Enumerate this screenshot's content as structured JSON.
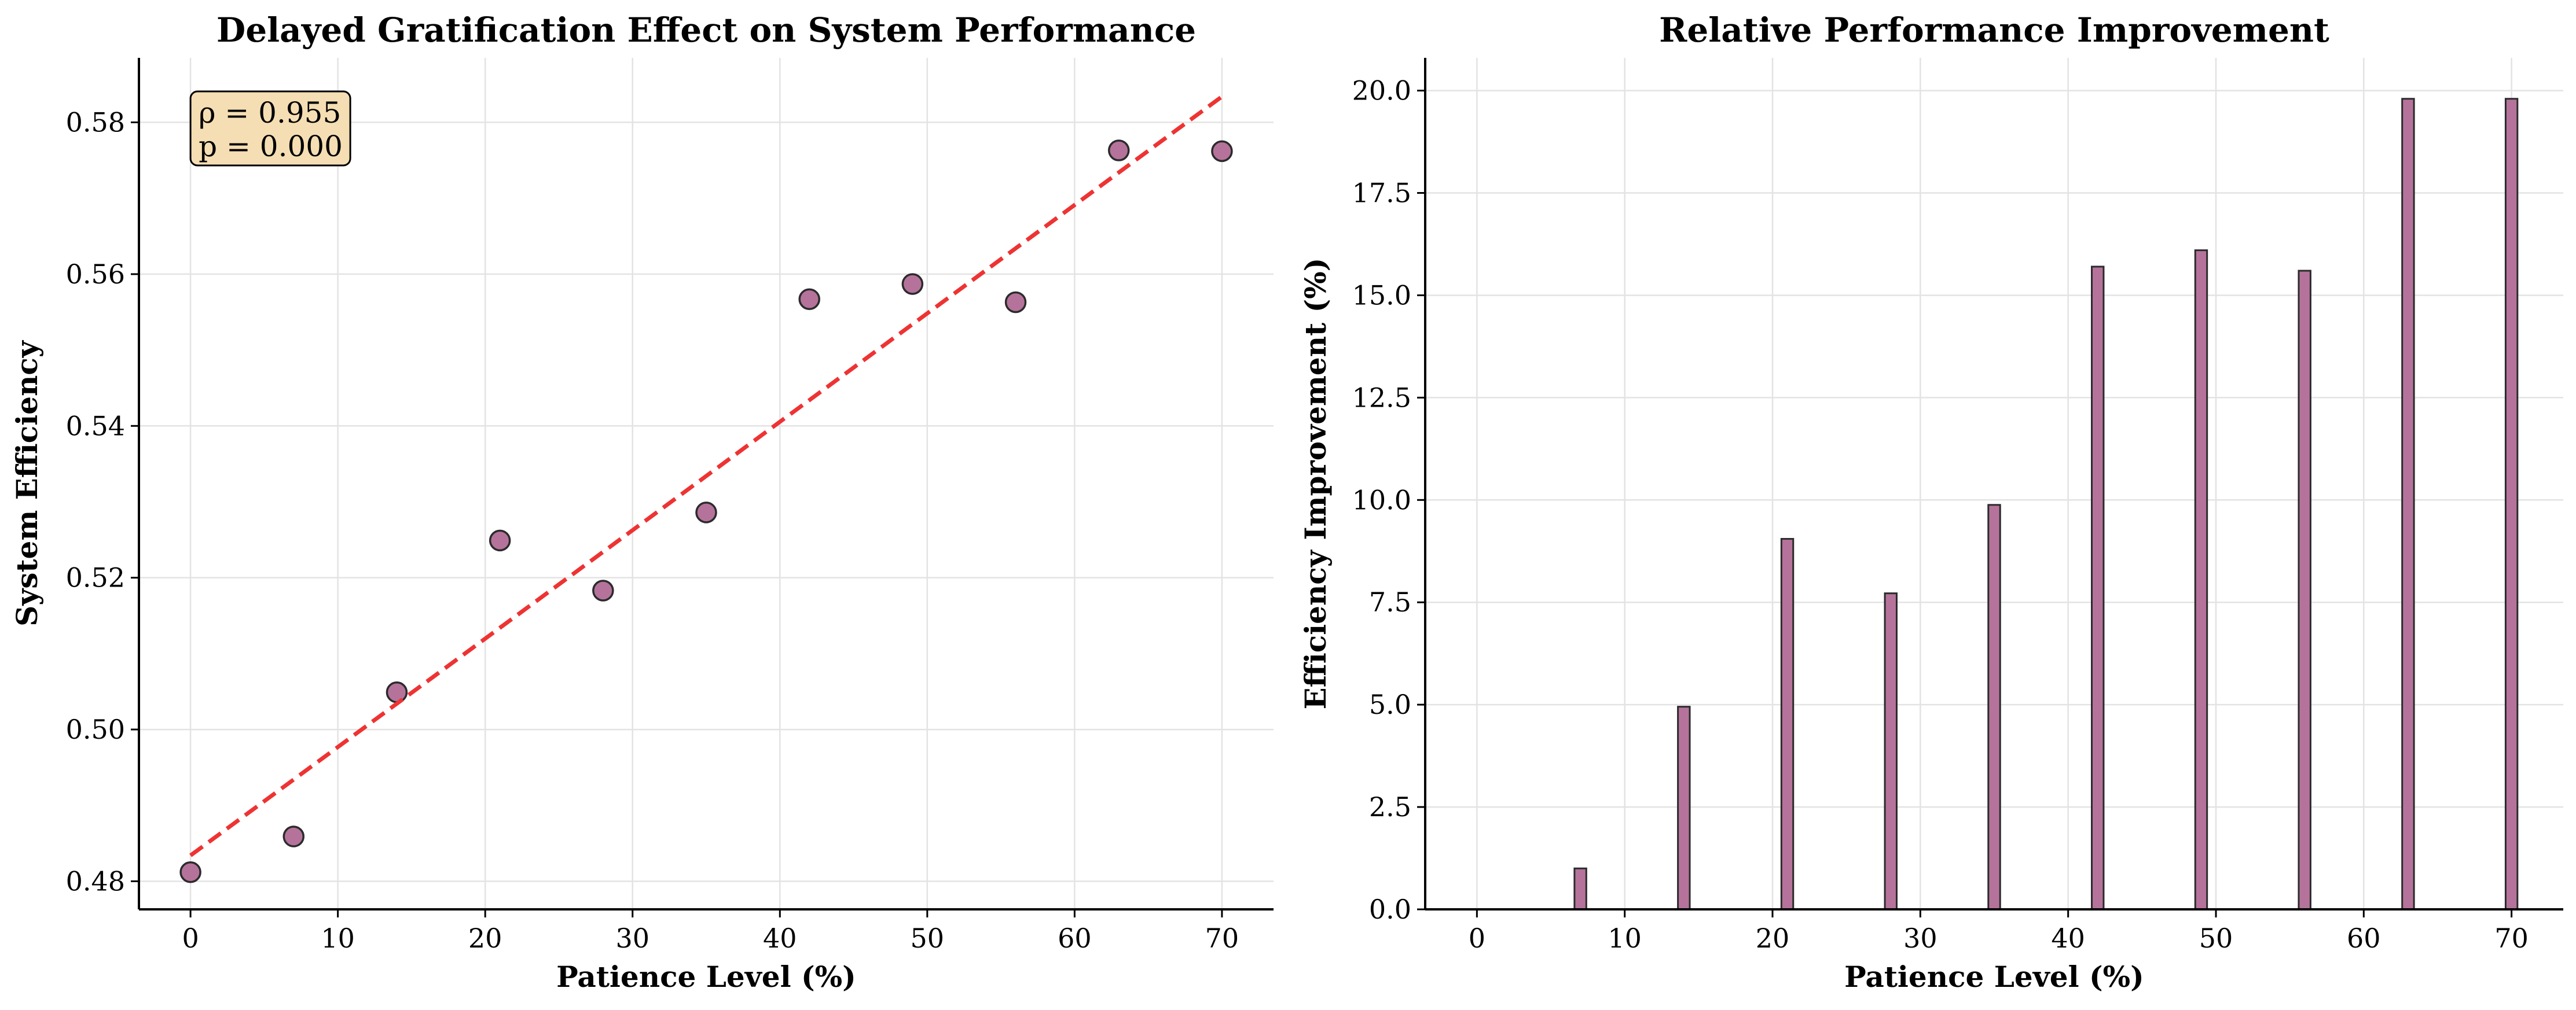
{
  "chart_data": [
    {
      "type": "scatter",
      "title": "Delayed Gratification Effect on System Performance",
      "xlabel": "Patience Level (%)",
      "ylabel": "System Efficiency",
      "xlim": [
        -3.5,
        73.5
      ],
      "ylim": [
        0.4763,
        0.5885
      ],
      "xticks": [
        0,
        10,
        20,
        30,
        40,
        50,
        60,
        70
      ],
      "xtick_labels": [
        "0",
        "10",
        "20",
        "30",
        "40",
        "50",
        "60",
        "70"
      ],
      "yticks": [
        0.48,
        0.5,
        0.52,
        0.54,
        0.56,
        0.58
      ],
      "ytick_labels": [
        "0.48",
        "0.50",
        "0.52",
        "0.54",
        "0.56",
        "0.58"
      ],
      "grid": true,
      "series": [
        {
          "x": [
            0,
            7,
            14,
            21,
            28,
            35,
            42,
            49,
            56,
            63,
            70
          ],
          "y": [
            0.4812,
            0.4859,
            0.5049,
            0.5249,
            0.5183,
            0.5286,
            0.5567,
            0.5587,
            0.5563,
            0.5763,
            0.5762
          ],
          "color": "#b5739b"
        }
      ],
      "trend_line": {
        "x": [
          0,
          70
        ],
        "y": [
          0.4834,
          0.5834
        ],
        "color": "#ee3333",
        "style": "dashed"
      },
      "annotation": {
        "lines": [
          "ρ = 0.955",
          "p = 0.000"
        ],
        "position": "top-left",
        "background": "#f5deb3"
      }
    },
    {
      "type": "bar",
      "title": "Relative Performance Improvement",
      "xlabel": "Patience Level (%)",
      "ylabel": "Efficiency Improvement (%)",
      "xlim": [
        -3.5,
        73.5
      ],
      "ylim": [
        0,
        20.8
      ],
      "xticks": [
        0,
        10,
        20,
        30,
        40,
        50,
        60,
        70
      ],
      "xtick_labels": [
        "0",
        "10",
        "20",
        "30",
        "40",
        "50",
        "60",
        "70"
      ],
      "yticks": [
        0,
        2.5,
        5,
        7.5,
        10,
        12.5,
        15,
        17.5,
        20
      ],
      "ytick_labels": [
        "0.0",
        "2.5",
        "5.0",
        "7.5",
        "10.0",
        "12.5",
        "15.0",
        "17.5",
        "20.0"
      ],
      "grid": true,
      "x": [
        0,
        7,
        14,
        21,
        28,
        35,
        42,
        49,
        56,
        63,
        70
      ],
      "values": [
        0.0,
        1.0,
        4.95,
        9.05,
        7.72,
        9.88,
        15.7,
        16.1,
        15.6,
        19.8,
        19.8
      ],
      "color": "#b5739b"
    }
  ]
}
